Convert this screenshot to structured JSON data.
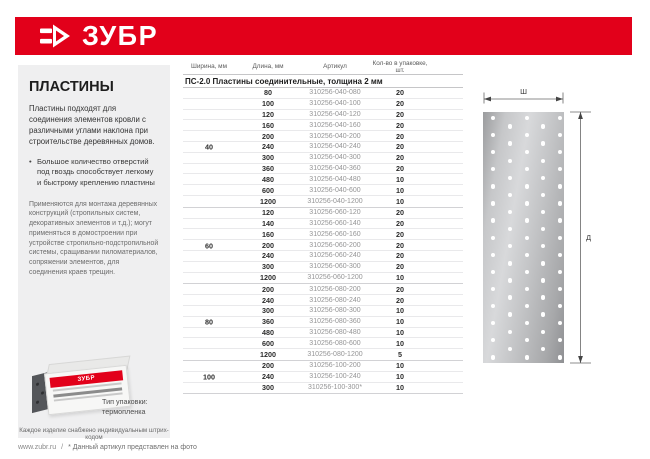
{
  "brand": {
    "logo_text": "ЗУБР",
    "red": "#e2001a"
  },
  "sidebar": {
    "title": "ПЛАСТИНЫ",
    "intro": "Пластины подходят для соединения элементов кровли с различными углами наклона при строительстве деревянных домов.",
    "bullet": "Большое количество отверстий под гвоздь способствует легкому и быстрому креплению пластины",
    "note": "Применяются для монтажа деревянных конструкций (стропильных систем, декоративных элементов и т.д.); могут применяться в домостроении при устройстве стропильно-подстропильной системы, сращивании пиломатериалов, сопряжении элементов, для соединения краев трещин.",
    "package_brand": "ЗУБР",
    "package_label_line1": "Тип упаковки:",
    "package_label_line2": "термопленка",
    "barcode_note": "Каждое изделие снабжено индивидуальным штрих-кодом"
  },
  "table": {
    "columns": [
      "Ширина, мм",
      "Длина, мм",
      "Артикул",
      "Кол-во в упаковке, шт."
    ],
    "section_title": "ПС-2.0  Пластины соединительные, толщина 2 мм",
    "groups": [
      {
        "width": "40",
        "rows": [
          [
            "80",
            "310256-040-080",
            "20"
          ],
          [
            "100",
            "310256-040-100",
            "20"
          ],
          [
            "120",
            "310256-040-120",
            "20"
          ],
          [
            "160",
            "310256-040-160",
            "20"
          ],
          [
            "200",
            "310256-040-200",
            "20"
          ],
          [
            "240",
            "310256-040-240",
            "20"
          ],
          [
            "300",
            "310256-040-300",
            "20"
          ],
          [
            "360",
            "310256-040-360",
            "20"
          ],
          [
            "480",
            "310256-040-480",
            "10"
          ],
          [
            "600",
            "310256-040-600",
            "10"
          ],
          [
            "1200",
            "310256-040-1200",
            "10"
          ]
        ]
      },
      {
        "width": "60",
        "rows": [
          [
            "120",
            "310256-060-120",
            "20"
          ],
          [
            "140",
            "310256-060-140",
            "20"
          ],
          [
            "160",
            "310256-060-160",
            "20"
          ],
          [
            "200",
            "310256-060-200",
            "20"
          ],
          [
            "240",
            "310256-060-240",
            "20"
          ],
          [
            "300",
            "310256-060-300",
            "20"
          ],
          [
            "1200",
            "310256-060-1200",
            "10"
          ]
        ]
      },
      {
        "width": "80",
        "rows": [
          [
            "200",
            "310256-080-200",
            "20"
          ],
          [
            "240",
            "310256-080-240",
            "20"
          ],
          [
            "300",
            "310256-080-300",
            "10"
          ],
          [
            "360",
            "310256-080-360",
            "10"
          ],
          [
            "480",
            "310256-080-480",
            "10"
          ],
          [
            "600",
            "310256-080-600",
            "10"
          ],
          [
            "1200",
            "310256-080-1200",
            "5"
          ]
        ]
      },
      {
        "width": "100",
        "rows": [
          [
            "200",
            "310256-100-200",
            "10"
          ],
          [
            "240",
            "310256-100-240",
            "10"
          ],
          [
            "300",
            "310256-100-300*",
            "10"
          ]
        ]
      }
    ]
  },
  "diagram": {
    "width_label": "Ш",
    "length_label": "Д"
  },
  "footer": {
    "site": "www.zubr.ru",
    "separator": "/",
    "note": "* Данный артикул представлен на фото"
  }
}
